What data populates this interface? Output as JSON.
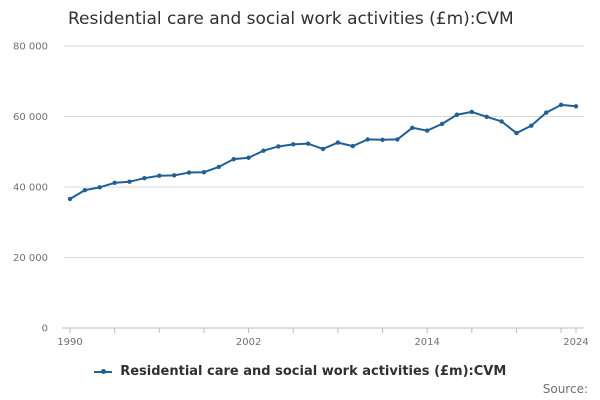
{
  "chart_data": {
    "type": "line",
    "title": "Residential care and social work activities (£m):CVM",
    "xlabel": "",
    "ylabel": "",
    "x": [
      1990,
      1991,
      1992,
      1993,
      1994,
      1995,
      1996,
      1997,
      1998,
      1999,
      2000,
      2001,
      2002,
      2003,
      2004,
      2005,
      2006,
      2007,
      2008,
      2009,
      2010,
      2011,
      2012,
      2013,
      2014,
      2015,
      2016,
      2017,
      2018,
      2019,
      2020,
      2021,
      2022,
      2023,
      2024
    ],
    "series": [
      {
        "name": "Residential care and social work activities (£m):CVM",
        "color": "#206095",
        "values": [
          36600,
          39100,
          39900,
          41200,
          41500,
          42500,
          43200,
          43300,
          44100,
          44200,
          45700,
          47900,
          48300,
          50300,
          51500,
          52100,
          52300,
          50800,
          52600,
          51600,
          53500,
          53400,
          53500,
          56800,
          56000,
          57900,
          60500,
          61300,
          59900,
          58600,
          55300,
          57400,
          61100,
          63300,
          62900
        ]
      }
    ],
    "ylim": [
      0,
      80000
    ],
    "yticks": [
      0,
      20000,
      40000,
      60000,
      80000
    ],
    "ytick_labels": [
      "0",
      "20 000",
      "40 000",
      "60 000",
      "80 000"
    ],
    "xticks_labeled": [
      1990,
      2002,
      2014,
      2024
    ],
    "grid": "horizontal",
    "legend_position": "bottom",
    "source_label": "Source:"
  }
}
